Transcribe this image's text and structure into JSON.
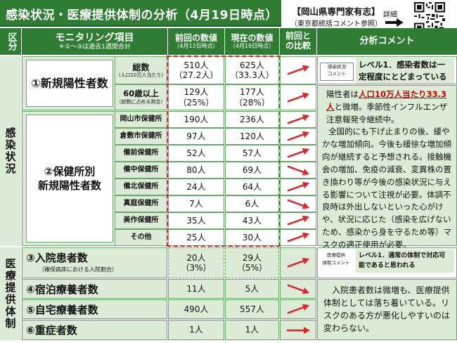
{
  "title": "感染状況・医療提供体制の分析（4月19日時点）",
  "expert": {
    "line1": "【岡山県専門家有志】",
    "line2": "（東京都統括コメント参照）",
    "detail": "詳細"
  },
  "header": {
    "kubun": "区分",
    "item": "モニタリング項目",
    "item_note": "＊①～③は過去1週間合計",
    "prev": "前回の数値",
    "prev_date": "（4月12日時点）",
    "curr": "現在の数値",
    "curr_date": "（4月19日時点）",
    "compare": "前回との比較",
    "comment": "分析コメント"
  },
  "sections": {
    "infection": "感染状況",
    "medical": "医療提供体制"
  },
  "rows": {
    "r1": {
      "label": "①新規陽性者数",
      "sub1": {
        "name": "総数",
        "note": "（人口10万人当たり）",
        "prev": "510人",
        "prev2": "（27.2人）",
        "curr": "625人",
        "curr2": "（33.3人）"
      },
      "sub2": {
        "name": "60歳以上",
        "note": "（総数に占める割合）",
        "prev": "129人",
        "prev2": "（25%）",
        "curr": "177人",
        "curr2": "（28%）"
      }
    },
    "r2": {
      "label1": "②保健所別",
      "label2": "新規陽性者数",
      "items": [
        {
          "name": "岡山市保健所",
          "prev": "190人",
          "curr": "236人"
        },
        {
          "name": "倉敷市保健所",
          "prev": "97人",
          "curr": "120人"
        },
        {
          "name": "備前保健所",
          "prev": "52人",
          "curr": "57人"
        },
        {
          "name": "備中保健所",
          "prev": "80人",
          "curr": "69人"
        },
        {
          "name": "備北保健所",
          "prev": "24人",
          "curr": "64人"
        },
        {
          "name": "真庭保健所",
          "prev": "7人",
          "curr": "6人"
        },
        {
          "name": "美作保健所",
          "prev": "35人",
          "curr": "43人"
        },
        {
          "name": "その他",
          "prev": "25人",
          "curr": "30人"
        }
      ]
    },
    "r3": {
      "label": "③入院患者数",
      "note": "（確保病床における入院割合）",
      "prev": "20人",
      "prev2": "（3%）",
      "curr": "29人",
      "curr2": "（5%）"
    },
    "r4": {
      "label": "④宿泊療養者数",
      "prev": "11人",
      "curr": "5人"
    },
    "r5": {
      "label": "⑤自宅療養者数",
      "prev": "490人",
      "curr": "557人"
    },
    "r6": {
      "label": "⑥重症者数",
      "prev": "1人",
      "curr": "1人"
    }
  },
  "comments": {
    "infection_tag1": "感染状況",
    "infection_tag2": "コメント",
    "infection_level": "レベル1．感染者数は一定程度にとどまっている",
    "infection_body_a": "陽性者は",
    "infection_body_red1": "人口10万人当たり",
    "infection_body_red2": "33.3人",
    "infection_body_b": "と微増。季節性インフルエンザ注意報発令継続中。",
    "infection_body_c": "全国的にも下げ止まりの後、緩やかな増加傾向。今後も緩徐な増加傾向が継続すると予想される。接触機会の増加、免疫の減衰、変異株の置き換わり等が今後の感染状況に与える影響について注視が必要。体調不良時は外出しないといった心がけや、状況に応じた（感染を広げないため、感染から身を守るため等）マスクの適正使用が必要。",
    "medical_tag1": "医療提供",
    "medical_tag2": "体制コメント",
    "medical_level": "レベル1．通常の体制で対応可能であると思われる",
    "medical_body": "入院患者数は微増も、医療提供体制としては落ち着いている。リスクのある方が悪化しやすいのは変わらない。"
  },
  "colors": {
    "green": "#2e7d33",
    "light_green": "#dcebd5",
    "red_arrow": "#e0262b",
    "border": "#6aa56a"
  },
  "trends": [
    "up",
    "up",
    "up",
    "up",
    "up",
    "down",
    "up",
    "down",
    "up",
    "up",
    "down",
    "up",
    "flat"
  ]
}
